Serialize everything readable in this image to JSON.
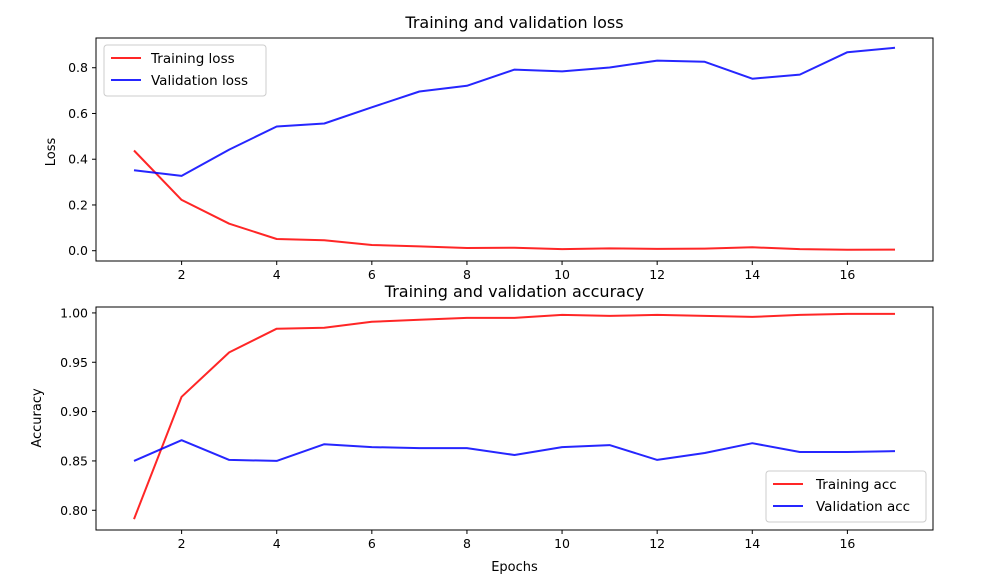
{
  "chart_data": [
    {
      "type": "line",
      "title": "Training and validation loss",
      "xlabel": "",
      "ylabel": "Loss",
      "x": [
        1,
        2,
        3,
        4,
        5,
        6,
        7,
        8,
        9,
        10,
        11,
        12,
        13,
        14,
        15,
        16,
        17
      ],
      "xlim": [
        0.2,
        17.8
      ],
      "ylim": [
        -0.045,
        0.93
      ],
      "xticks": [
        2,
        4,
        6,
        8,
        10,
        12,
        14,
        16
      ],
      "yticks": [
        0.0,
        0.2,
        0.4,
        0.6,
        0.8
      ],
      "ytick_labels": [
        "0.0",
        "0.2",
        "0.4",
        "0.6",
        "0.8"
      ],
      "grid": false,
      "legend": "upper-left",
      "series": [
        {
          "name": "Training loss",
          "color": "#ff0000",
          "values": [
            0.438,
            0.222,
            0.118,
            0.051,
            0.046,
            0.025,
            0.019,
            0.012,
            0.013,
            0.007,
            0.01,
            0.008,
            0.009,
            0.015,
            0.007,
            0.004,
            0.005
          ]
        },
        {
          "name": "Validation loss",
          "color": "#0000ff",
          "values": [
            0.352,
            0.327,
            0.442,
            0.543,
            0.556,
            0.627,
            0.696,
            0.721,
            0.792,
            0.784,
            0.801,
            0.831,
            0.826,
            0.752,
            0.77,
            0.868,
            0.887
          ]
        }
      ]
    },
    {
      "type": "line",
      "title": "Training and validation accuracy",
      "xlabel": "Epochs",
      "ylabel": "Accuracy",
      "x": [
        1,
        2,
        3,
        4,
        5,
        6,
        7,
        8,
        9,
        10,
        11,
        12,
        13,
        14,
        15,
        16,
        17
      ],
      "xlim": [
        0.2,
        17.8
      ],
      "ylim": [
        0.78,
        1.006
      ],
      "xticks": [
        2,
        4,
        6,
        8,
        10,
        12,
        14,
        16
      ],
      "yticks": [
        0.8,
        0.85,
        0.9,
        0.95,
        1.0
      ],
      "ytick_labels": [
        "0.80",
        "0.85",
        "0.90",
        "0.95",
        "1.00"
      ],
      "grid": false,
      "legend": "lower-right",
      "series": [
        {
          "name": "Training acc",
          "color": "#ff0000",
          "values": [
            0.791,
            0.915,
            0.96,
            0.984,
            0.985,
            0.991,
            0.993,
            0.995,
            0.995,
            0.998,
            0.997,
            0.998,
            0.997,
            0.996,
            0.998,
            0.999,
            0.999
          ]
        },
        {
          "name": "Validation acc",
          "color": "#0000ff",
          "values": [
            0.85,
            0.871,
            0.851,
            0.85,
            0.867,
            0.864,
            0.863,
            0.863,
            0.856,
            0.864,
            0.866,
            0.851,
            0.858,
            0.868,
            0.859,
            0.859,
            0.86
          ]
        }
      ]
    }
  ]
}
